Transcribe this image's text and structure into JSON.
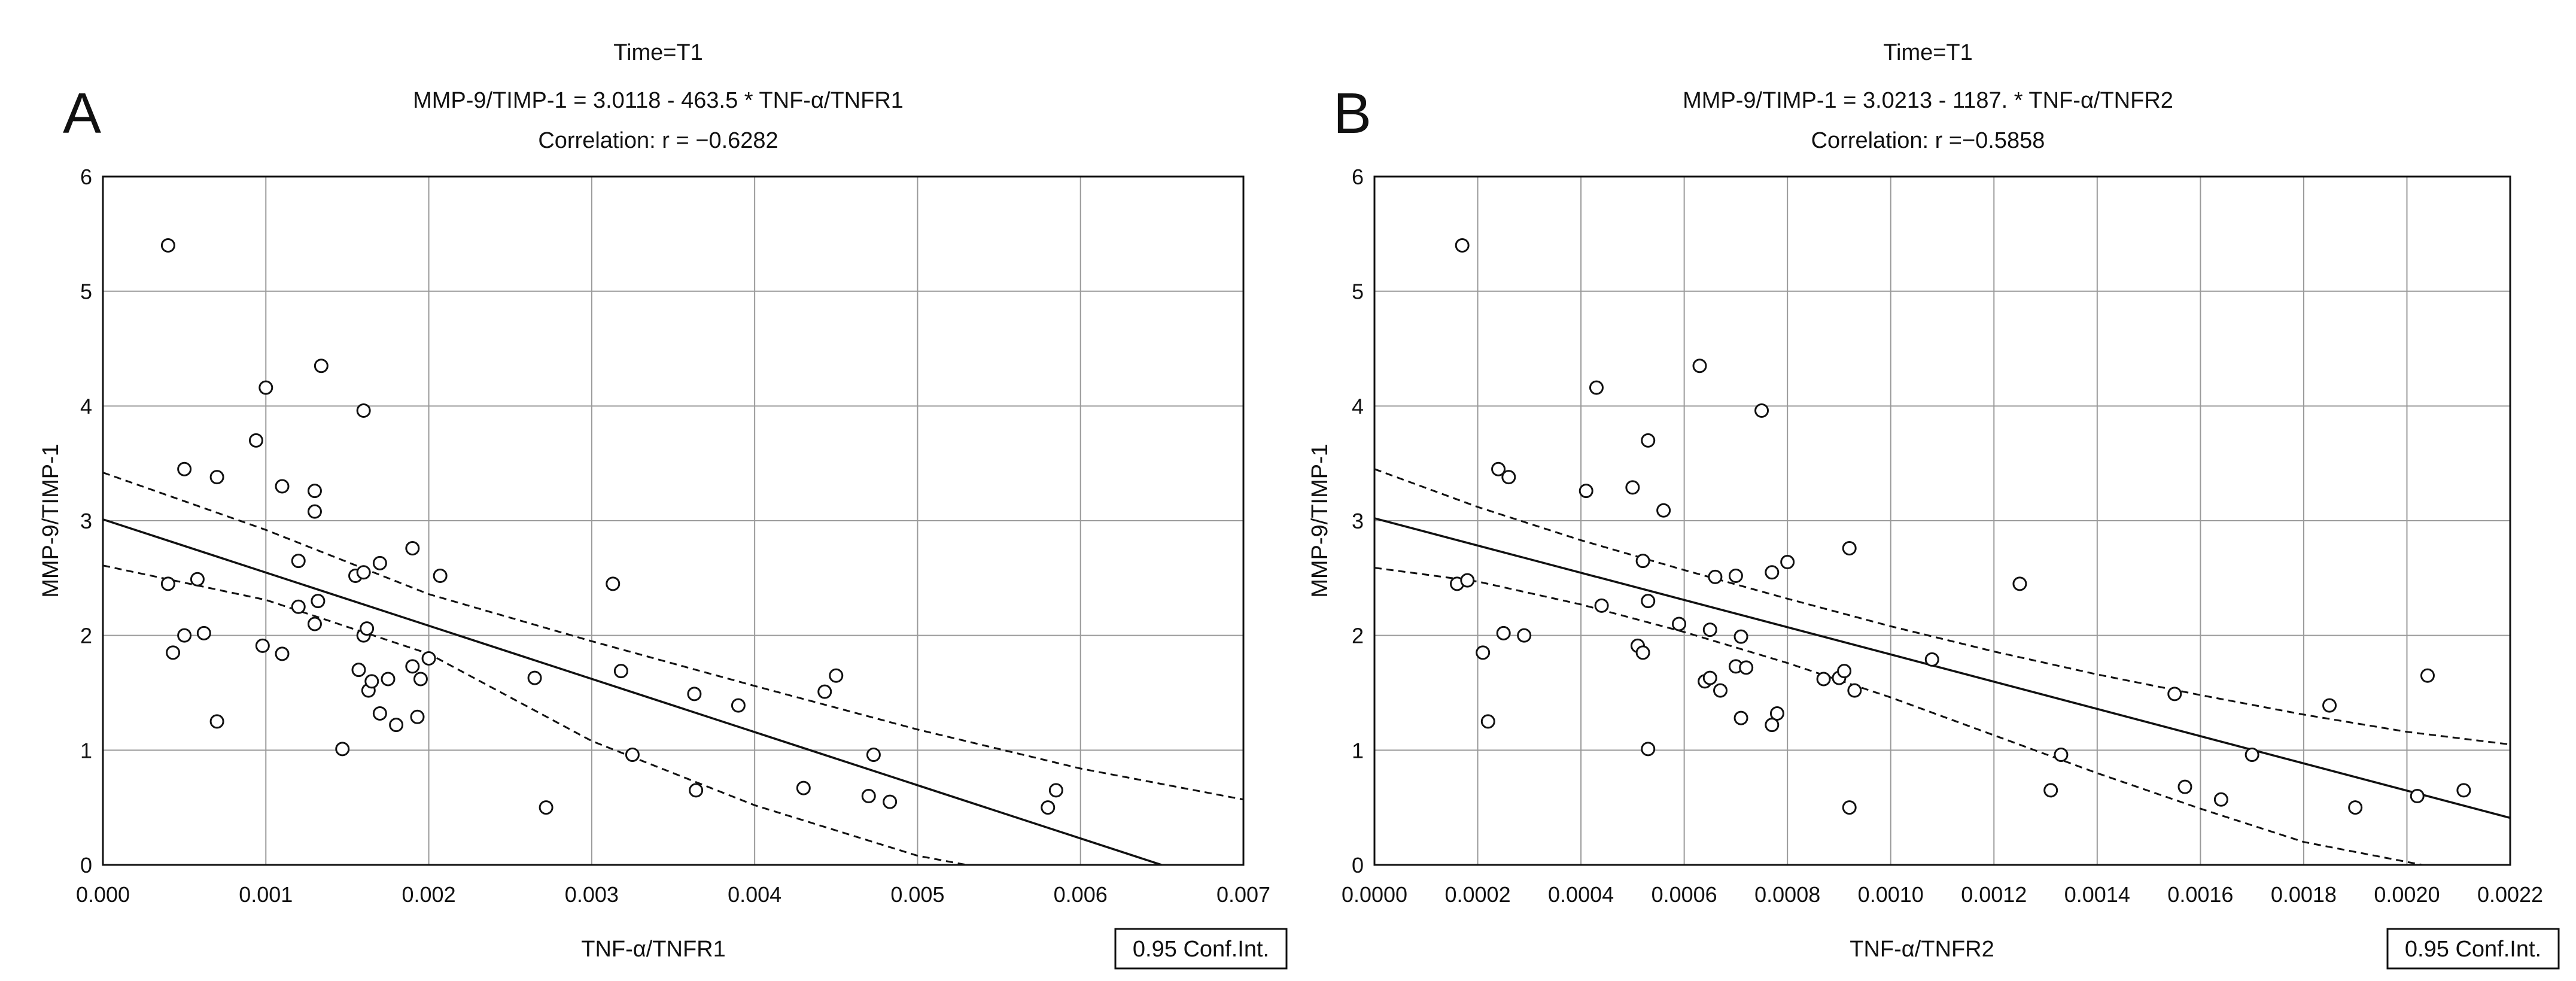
{
  "chart_data": [
    {
      "panel": "A",
      "type": "scatter",
      "title_lines": [
        "Time=T1",
        "MMP-9/TIMP-1 = 3.0118 - 463.5  * TNF-α/TNFR1",
        "Correlation: r = −0.6282"
      ],
      "xlabel": "TNF-α/TNFR1",
      "ylabel": "MMP-9/TIMP-1",
      "legend": "0.95 Conf.Int.",
      "xlim": [
        0,
        0.007
      ],
      "ylim": [
        0,
        6
      ],
      "xticks": [
        0,
        0.001,
        0.002,
        0.003,
        0.004,
        0.005,
        0.006,
        0.007
      ],
      "xtick_labels": [
        "0.000",
        "0.001",
        "0.002",
        "0.003",
        "0.004",
        "0.005",
        "0.006",
        "0.007"
      ],
      "yticks": [
        0,
        1,
        2,
        3,
        4,
        5,
        6
      ],
      "ytick_labels": [
        "0",
        "1",
        "2",
        "3",
        "4",
        "5",
        "6"
      ],
      "fit": {
        "intercept": 3.0118,
        "slope": -463.5
      },
      "ci_upper": [
        [
          0,
          3.42
        ],
        [
          0.001,
          2.92
        ],
        [
          0.002,
          2.36
        ],
        [
          0.003,
          1.95
        ],
        [
          0.004,
          1.56
        ],
        [
          0.005,
          1.18
        ],
        [
          0.006,
          0.84
        ],
        [
          0.007,
          0.57
        ]
      ],
      "ci_lower": [
        [
          0,
          2.61
        ],
        [
          0.001,
          2.31
        ],
        [
          0.002,
          1.84
        ],
        [
          0.003,
          1.08
        ],
        [
          0.004,
          0.52
        ],
        [
          0.005,
          0.08
        ],
        [
          0.0053,
          0.0
        ]
      ],
      "points": [
        [
          0.0004,
          5.4
        ],
        [
          0.0004,
          2.45
        ],
        [
          0.00043,
          1.85
        ],
        [
          0.0005,
          2.0
        ],
        [
          0.0005,
          3.45
        ],
        [
          0.00058,
          2.49
        ],
        [
          0.00062,
          2.02
        ],
        [
          0.0007,
          1.25
        ],
        [
          0.0007,
          3.38
        ],
        [
          0.00094,
          3.7
        ],
        [
          0.00098,
          1.91
        ],
        [
          0.001,
          4.16
        ],
        [
          0.0011,
          3.3
        ],
        [
          0.0011,
          1.84
        ],
        [
          0.0012,
          2.25
        ],
        [
          0.0012,
          2.65
        ],
        [
          0.0013,
          3.08
        ],
        [
          0.0013,
          3.26
        ],
        [
          0.0013,
          2.1
        ],
        [
          0.00132,
          2.3
        ],
        [
          0.00134,
          4.35
        ],
        [
          0.00147,
          1.01
        ],
        [
          0.00155,
          2.52
        ],
        [
          0.00157,
          1.7
        ],
        [
          0.0016,
          2.55
        ],
        [
          0.0016,
          3.96
        ],
        [
          0.0016,
          2.0
        ],
        [
          0.00162,
          2.06
        ],
        [
          0.00163,
          1.52
        ],
        [
          0.00165,
          1.6
        ],
        [
          0.0017,
          2.63
        ],
        [
          0.0017,
          1.32
        ],
        [
          0.00175,
          1.62
        ],
        [
          0.0018,
          1.22
        ],
        [
          0.0019,
          2.76
        ],
        [
          0.0019,
          1.73
        ],
        [
          0.00193,
          1.29
        ],
        [
          0.00195,
          1.62
        ],
        [
          0.002,
          1.8
        ],
        [
          0.00207,
          2.52
        ],
        [
          0.00265,
          1.63
        ],
        [
          0.00272,
          0.5
        ],
        [
          0.00313,
          2.45
        ],
        [
          0.00318,
          1.69
        ],
        [
          0.00325,
          0.96
        ],
        [
          0.00363,
          1.49
        ],
        [
          0.00364,
          0.65
        ],
        [
          0.0039,
          1.39
        ],
        [
          0.0043,
          0.67
        ],
        [
          0.00443,
          1.51
        ],
        [
          0.0045,
          1.65
        ],
        [
          0.0047,
          0.6
        ],
        [
          0.00473,
          0.96
        ],
        [
          0.00483,
          0.55
        ],
        [
          0.0058,
          0.5
        ],
        [
          0.00585,
          0.65
        ]
      ]
    },
    {
      "panel": "B",
      "type": "scatter",
      "title_lines": [
        "Time=T1",
        "MMP-9/TIMP-1 = 3.0213 - 1187.  * TNF-α/TNFR2",
        "Correlation: r =−0.5858"
      ],
      "xlabel": "TNF-α/TNFR2",
      "ylabel": "MMP-9/TIMP-1",
      "legend": "0.95 Conf.Int.",
      "xlim": [
        0,
        0.0022
      ],
      "ylim": [
        0,
        6
      ],
      "xticks": [
        0,
        0.0002,
        0.0004,
        0.0006,
        0.0008,
        0.001,
        0.0012,
        0.0014,
        0.0016,
        0.0018,
        0.002,
        0.0022
      ],
      "xtick_labels": [
        "0.0000",
        "0.0002",
        "0.0004",
        "0.0006",
        "0.0008",
        "0.0010",
        "0.0012",
        "0.0014",
        "0.0016",
        "0.0018",
        "0.0020",
        "0.0022"
      ],
      "yticks": [
        0,
        1,
        2,
        3,
        4,
        5,
        6
      ],
      "ytick_labels": [
        "0",
        "1",
        "2",
        "3",
        "4",
        "5",
        "6"
      ],
      "fit": {
        "intercept": 3.0213,
        "slope": -1187
      },
      "ci_upper": [
        [
          0,
          3.45
        ],
        [
          0.0002,
          3.12
        ],
        [
          0.0004,
          2.83
        ],
        [
          0.0006,
          2.57
        ],
        [
          0.0008,
          2.32
        ],
        [
          0.001,
          2.08
        ],
        [
          0.0012,
          1.86
        ],
        [
          0.0014,
          1.66
        ],
        [
          0.0016,
          1.48
        ],
        [
          0.0018,
          1.31
        ],
        [
          0.002,
          1.16
        ],
        [
          0.0022,
          1.05
        ]
      ],
      "ci_lower": [
        [
          0,
          2.59
        ],
        [
          0.0002,
          2.47
        ],
        [
          0.0004,
          2.27
        ],
        [
          0.0006,
          2.03
        ],
        [
          0.0008,
          1.76
        ],
        [
          0.001,
          1.46
        ],
        [
          0.0012,
          1.13
        ],
        [
          0.0014,
          0.8
        ],
        [
          0.0016,
          0.49
        ],
        [
          0.0018,
          0.2
        ],
        [
          0.00203,
          0.0
        ]
      ],
      "points": [
        [
          0.00016,
          2.45
        ],
        [
          0.00017,
          5.4
        ],
        [
          0.00018,
          2.48
        ],
        [
          0.00021,
          1.85
        ],
        [
          0.00022,
          1.25
        ],
        [
          0.00024,
          3.45
        ],
        [
          0.00025,
          2.02
        ],
        [
          0.00026,
          3.38
        ],
        [
          0.00029,
          2.0
        ],
        [
          0.00041,
          3.26
        ],
        [
          0.00043,
          4.16
        ],
        [
          0.00044,
          2.26
        ],
        [
          0.0005,
          3.29
        ],
        [
          0.00051,
          1.91
        ],
        [
          0.00052,
          2.65
        ],
        [
          0.00052,
          1.85
        ],
        [
          0.00053,
          3.7
        ],
        [
          0.00053,
          2.3
        ],
        [
          0.00053,
          1.01
        ],
        [
          0.00056,
          3.09
        ],
        [
          0.00059,
          2.1
        ],
        [
          0.00063,
          4.35
        ],
        [
          0.00064,
          1.6
        ],
        [
          0.00065,
          2.05
        ],
        [
          0.00065,
          1.63
        ],
        [
          0.00066,
          2.51
        ],
        [
          0.00067,
          1.52
        ],
        [
          0.0007,
          2.52
        ],
        [
          0.0007,
          1.73
        ],
        [
          0.00071,
          1.99
        ],
        [
          0.00071,
          1.28
        ],
        [
          0.00072,
          1.72
        ],
        [
          0.00075,
          3.96
        ],
        [
          0.00077,
          2.55
        ],
        [
          0.00077,
          1.22
        ],
        [
          0.00078,
          1.32
        ],
        [
          0.0008,
          2.64
        ],
        [
          0.00087,
          1.62
        ],
        [
          0.0009,
          1.63
        ],
        [
          0.00091,
          1.69
        ],
        [
          0.00092,
          0.5
        ],
        [
          0.00092,
          2.76
        ],
        [
          0.00093,
          1.52
        ],
        [
          0.00108,
          1.79
        ],
        [
          0.00125,
          2.45
        ],
        [
          0.00131,
          0.65
        ],
        [
          0.00133,
          0.96
        ],
        [
          0.00155,
          1.49
        ],
        [
          0.00157,
          0.68
        ],
        [
          0.00164,
          0.57
        ],
        [
          0.0017,
          0.96
        ],
        [
          0.00185,
          1.39
        ],
        [
          0.0019,
          0.5
        ],
        [
          0.00202,
          0.6
        ],
        [
          0.00204,
          1.65
        ],
        [
          0.00211,
          0.65
        ]
      ]
    }
  ]
}
